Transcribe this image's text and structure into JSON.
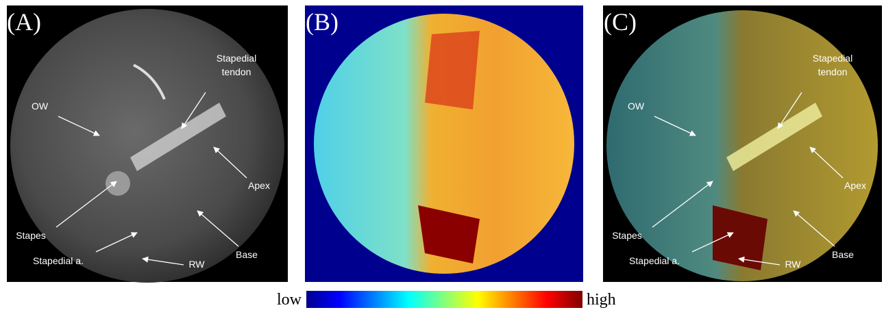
{
  "panels": [
    {
      "label": "(A)",
      "annotations": [
        {
          "lines": [
            "Stapedial",
            "tendon"
          ]
        },
        {
          "lines": [
            "OW"
          ]
        },
        {
          "lines": [
            "Apex"
          ]
        },
        {
          "lines": [
            "Stapes"
          ]
        },
        {
          "lines": [
            "Base"
          ]
        },
        {
          "lines": [
            "Stapedial a."
          ]
        },
        {
          "lines": [
            "RW"
          ]
        }
      ]
    },
    {
      "label": "(B)"
    },
    {
      "label": "(C)",
      "annotations": [
        {
          "lines": [
            "Stapedial",
            "tendon"
          ]
        },
        {
          "lines": [
            "OW"
          ]
        },
        {
          "lines": [
            "Apex"
          ]
        },
        {
          "lines": [
            "Stapes"
          ]
        },
        {
          "lines": [
            "Base"
          ]
        },
        {
          "lines": [
            "Stapedial a."
          ]
        },
        {
          "lines": [
            "RW"
          ]
        }
      ]
    }
  ],
  "colorbar": {
    "low": "low",
    "high": "high"
  }
}
